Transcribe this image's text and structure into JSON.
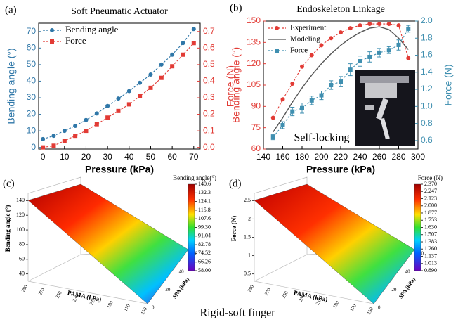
{
  "caption": "Rigid-soft finger",
  "chart_data": [
    {
      "type": "line",
      "panel_label": "(a)",
      "title": "Soft Pneumatic Actuator",
      "x_label": "Pressure (kPa)",
      "y_label": "Bending angle (°)",
      "y2_label": "Force (N)",
      "x": [
        0,
        5,
        10,
        15,
        20,
        25,
        30,
        35,
        40,
        45,
        50,
        55,
        60,
        65,
        70
      ],
      "series": [
        {
          "name": "Bending angle",
          "color": "#2f77a8",
          "marker": "circle",
          "linestyle": "dashed",
          "values": [
            5,
            7,
            10,
            13,
            16.5,
            20.5,
            25,
            29.5,
            34,
            39,
            44,
            50,
            56,
            63,
            71.5
          ]
        },
        {
          "name": "Force",
          "color": "#e23b35",
          "marker": "square",
          "linestyle": "dashed",
          "axis": "y2",
          "values": [
            0,
            0.01,
            0.04,
            0.07,
            0.1,
            0.14,
            0.18,
            0.22,
            0.26,
            0.31,
            0.36,
            0.42,
            0.49,
            0.56,
            0.63
          ]
        }
      ],
      "xlim": [
        -2,
        73
      ],
      "xticks": [
        0,
        10,
        20,
        30,
        40,
        50,
        60,
        70
      ],
      "ylim": [
        -1,
        75
      ],
      "yticks": [
        0,
        10,
        20,
        30,
        40,
        50,
        60,
        70
      ],
      "y2lim": [
        -0.01,
        0.75
      ],
      "y2ticks": [
        {
          "value": 0,
          "label": "0.0"
        },
        0.1,
        0.2,
        0.3,
        0.4,
        0.5,
        0.6,
        0.7
      ],
      "legend": "upper left"
    },
    {
      "type": "line",
      "panel_label": "(b)",
      "title": "Endoskeleton Linkage",
      "x_label": "Pressure (kPa)",
      "y_label": "Bending angle (°)",
      "y2_label": "Force (N)",
      "annotation": "Self-locking",
      "x": [
        150,
        160,
        170,
        180,
        190,
        200,
        210,
        220,
        230,
        240,
        250,
        260,
        270,
        280,
        290
      ],
      "series": [
        {
          "name": "Experiment",
          "color": "#e23b35",
          "marker": "circle",
          "linestyle": "dashed",
          "values": [
            82,
            95,
            106,
            118,
            126,
            133,
            138,
            142,
            145,
            147,
            148,
            148,
            148,
            147,
            124
          ]
        },
        {
          "name": "Modeling",
          "color": "#555555",
          "marker": "none",
          "linestyle": "solid",
          "values": [
            72,
            82,
            93,
            103,
            112,
            120,
            127,
            133,
            138,
            142,
            145,
            146,
            144,
            138,
            130
          ]
        },
        {
          "name": "Force",
          "color": "#3f8fb0",
          "marker": "square",
          "linestyle": "dashed",
          "axis": "y2",
          "values": [
            0.64,
            0.78,
            0.94,
            0.98,
            1.07,
            1.13,
            1.25,
            1.29,
            1.43,
            1.53,
            1.58,
            1.63,
            1.66,
            1.72,
            1.91
          ],
          "errors": [
            0.03,
            0.04,
            0.05,
            0.06,
            0.05,
            0.05,
            0.05,
            0.06,
            0.07,
            0.06,
            0.06,
            0.05,
            0.04,
            0.06,
            0.04
          ]
        }
      ],
      "xlim": [
        140,
        300
      ],
      "xticks": [
        140,
        160,
        180,
        200,
        220,
        240,
        260,
        280,
        300
      ],
      "ylim": [
        60,
        150
      ],
      "yticks": [
        60,
        75,
        90,
        105,
        120,
        135,
        150
      ],
      "y2lim": [
        0.5,
        2.0
      ],
      "y2ticks": [
        0.6,
        0.8,
        {
          "value": 1,
          "label": "1.0"
        },
        1.2,
        1.4,
        1.6,
        1.8,
        {
          "value": 2,
          "label": "2.0"
        }
      ],
      "legend": "upper left"
    },
    {
      "type": "surface",
      "panel_label": "(c)",
      "z_label": "Bending angle (°)",
      "x_label": "PAMA (kPa)",
      "y_label": "SPA (kPa)",
      "colorbar_title": "Bending angle(°)",
      "clim": [
        58,
        140.6
      ],
      "colorbar_ticks": [
        140.6,
        132.3,
        124.1,
        115.8,
        107.6,
        {
          "value": 99.3,
          "label": "99.30"
        },
        91.04,
        82.78,
        74.52,
        66.26,
        {
          "value": 58,
          "label": "58.00"
        }
      ],
      "zlim": [
        30,
        150
      ],
      "zticks": [
        40,
        60,
        80,
        100,
        120,
        140
      ],
      "xticks": [
        290,
        270,
        250,
        230,
        210,
        190,
        170,
        150
      ],
      "yticks": [
        0,
        20,
        40,
        60
      ]
    },
    {
      "type": "surface",
      "panel_label": "(d)",
      "z_label": "Force (N)",
      "x_label": "PAMA (kPa)",
      "y_label": "SPA (kPa)",
      "colorbar_title": "Force (N)",
      "clim": [
        0.89,
        2.37
      ],
      "colorbar_ticks": [
        {
          "value": 2.37,
          "label": "2.370"
        },
        2.247,
        2.123,
        {
          "value": 2,
          "label": "2.000"
        },
        1.877,
        1.753,
        {
          "value": 1.63,
          "label": "1.630"
        },
        1.507,
        1.383,
        {
          "value": 1.26,
          "label": "1.260"
        },
        1.137,
        1.013,
        {
          "value": 0.89,
          "label": "0.890"
        }
      ],
      "zlim": [
        0.3,
        2.7
      ],
      "zticks": [
        0.5,
        1,
        1.5,
        2,
        2.5
      ],
      "xticks": [
        290,
        270,
        250,
        230,
        210,
        190,
        170,
        150
      ],
      "yticks": [
        0,
        20,
        40,
        60
      ]
    }
  ]
}
